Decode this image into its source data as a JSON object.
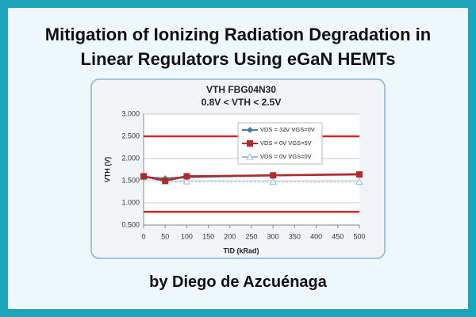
{
  "header": {
    "title_line1": "Mitigation of Ionizing Radiation Degradation in",
    "title_line2": "Linear Regulators Using eGaN HEMTs"
  },
  "byline": "by Diego de Azcuénaga",
  "chart_data": {
    "type": "line",
    "title": "VTH  FBG04N30",
    "subtitle": "0.8V < VTH < 2.5V",
    "x_label": "TID (kRad)",
    "y_label": "VTH (V)",
    "x": [
      0,
      50,
      100,
      300,
      500
    ],
    "series": [
      {
        "name": "VDS = 32V VGS=0V",
        "color": "#4a7ea6",
        "marker": "diamond",
        "values": [
          1.58,
          1.55,
          1.58,
          1.62,
          1.65
        ]
      },
      {
        "name": "VDS = 0V VGS=5V",
        "color": "#b22a2a",
        "marker": "square",
        "values": [
          1.6,
          1.5,
          1.6,
          1.62,
          1.64
        ]
      },
      {
        "name": "VDS = 0V VGS=0V",
        "color": "#8cc4e0",
        "marker": "triangle",
        "values": [
          1.58,
          1.47,
          1.48,
          1.47,
          1.47
        ]
      }
    ],
    "limit_lines": [
      2.5,
      0.8
    ],
    "limit_color": "#cc2a2a",
    "xlim": [
      0,
      500
    ],
    "xticks": [
      0,
      50,
      100,
      150,
      200,
      250,
      300,
      350,
      400,
      450,
      500
    ],
    "ylim": [
      0.5,
      3.0
    ],
    "yticks": [
      {
        "value": 0.5,
        "label": "0.500"
      },
      {
        "value": 1.0,
        "label": "1.000"
      },
      {
        "value": 1.5,
        "label": "1.500"
      },
      {
        "value": 2.0,
        "label": "2.000"
      },
      {
        "value": 2.5,
        "label": "2.500"
      },
      {
        "value": 3.0,
        "label": "3.000"
      }
    ],
    "grid": true
  }
}
